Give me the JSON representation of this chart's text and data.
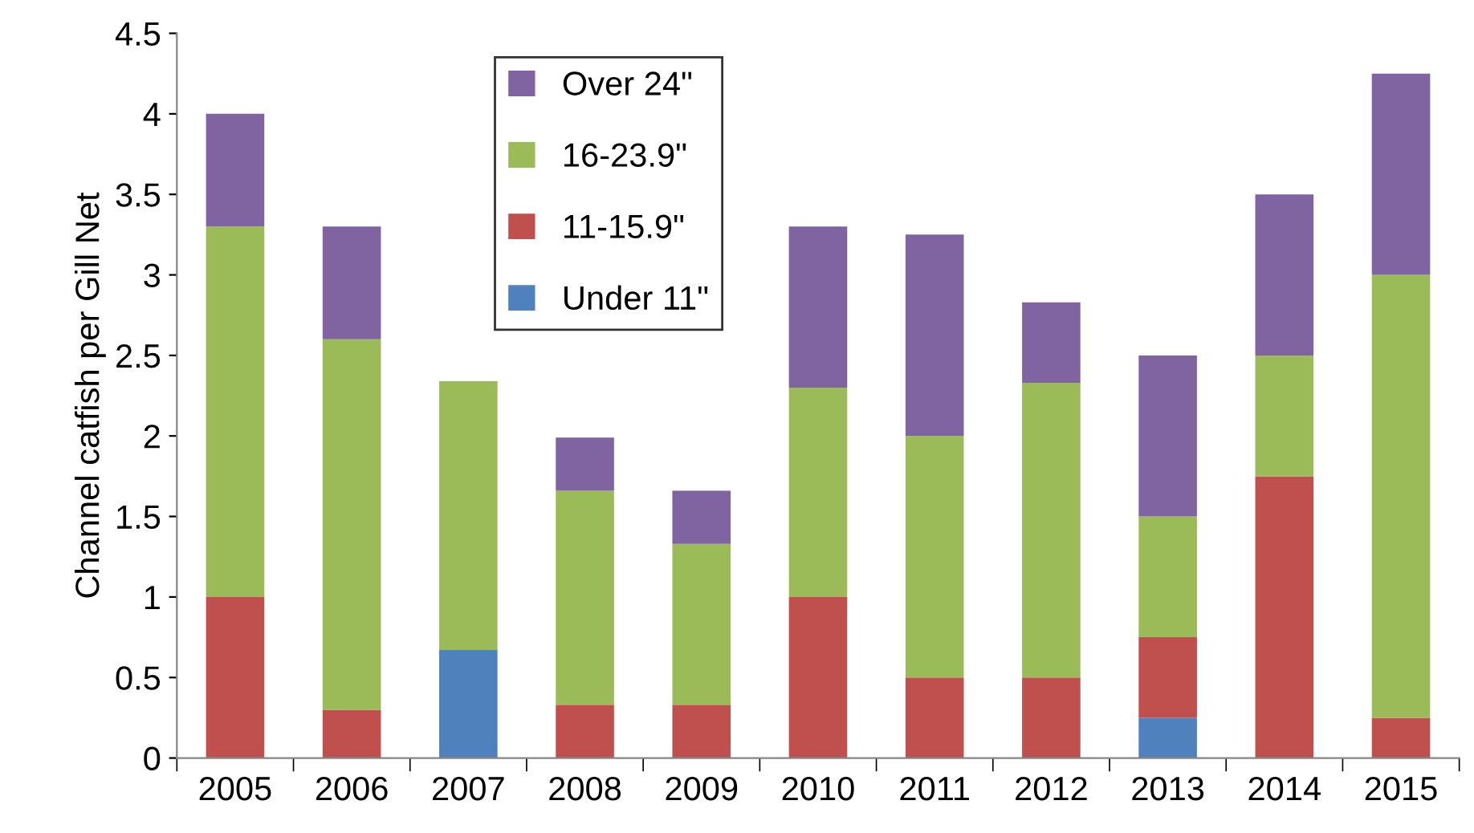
{
  "chart_data": {
    "type": "bar",
    "stacked": true,
    "ylabel": "Channel catfish per Gill Net",
    "categories": [
      "2005",
      "2006",
      "2007",
      "2008",
      "2009",
      "2010",
      "2011",
      "2012",
      "2013",
      "2014",
      "2015"
    ],
    "series": [
      {
        "name": "Under 11\"",
        "color": "#4f81bd",
        "values": [
          0,
          0,
          0.67,
          0,
          0,
          0,
          0,
          0,
          0.25,
          0,
          0
        ]
      },
      {
        "name": "11-15.9\"",
        "color": "#c0504d",
        "values": [
          1,
          0.3,
          0,
          0.33,
          0.33,
          1,
          0.5,
          0.5,
          0.5,
          1.75,
          0.25
        ]
      },
      {
        "name": "16-23.9\"",
        "color": "#9bbb59",
        "values": [
          2.3,
          2.3,
          1.67,
          1.33,
          1,
          1.3,
          1.5,
          1.83,
          0.75,
          0.75,
          2.75
        ]
      },
      {
        "name": "Over 24\"",
        "color": "#8064a2",
        "values": [
          0.7,
          0.7,
          0,
          0.33,
          0.33,
          1,
          1.25,
          0.5,
          1,
          1,
          1.25
        ]
      }
    ],
    "ylim": [
      0,
      4.5
    ],
    "yticks": [
      0,
      0.5,
      1,
      1.5,
      2,
      2.5,
      3,
      3.5,
      4,
      4.5
    ],
    "grid": false,
    "legend": "top left"
  }
}
